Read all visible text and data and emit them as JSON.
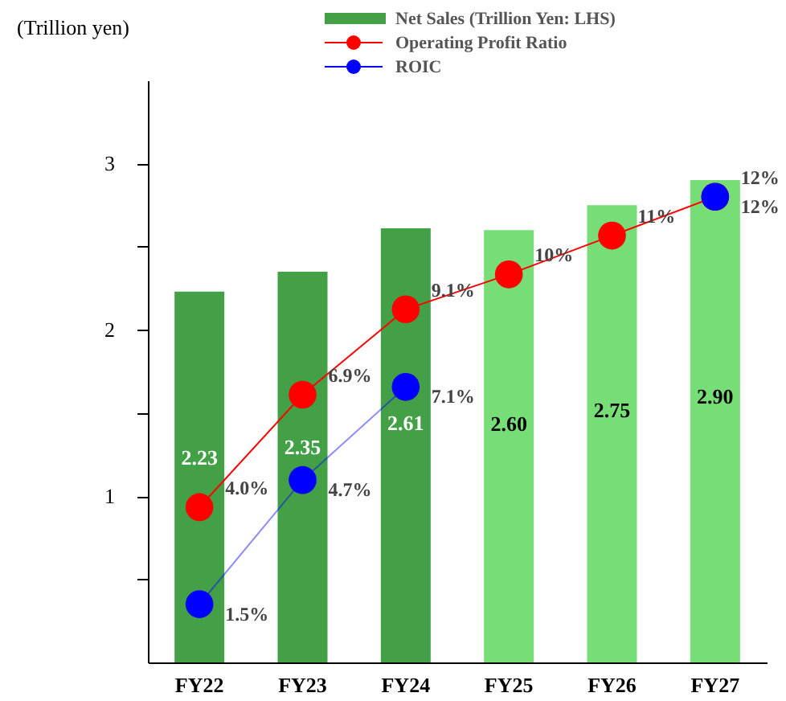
{
  "chart_data": {
    "type": "bar",
    "ylabel": "(Trillion yen)",
    "categories": [
      "FY22",
      "FY23",
      "FY24",
      "FY25",
      "FY26",
      "FY27"
    ],
    "ylim": [
      0,
      3.5
    ],
    "yticks": [
      {
        "value": 0.5,
        "label": null
      },
      1,
      {
        "value": 1.5,
        "label": null
      },
      2,
      {
        "value": 2.5,
        "label": null
      },
      3
    ],
    "y2lim": [
      0,
      15
    ],
    "data_labels": true,
    "legend": "top",
    "marker": "circle",
    "grid": false,
    "series": [
      {
        "name": "Net Sales (Trillion Yen: LHS)",
        "color": "#43a047",
        "colors": [
          "#43a047",
          "#43a047",
          "#43a047",
          "#77dd77",
          "#77dd77",
          "#77dd77"
        ],
        "values": [
          2.23,
          2.35,
          2.61,
          2.6,
          2.75,
          2.9
        ],
        "value_labels": [
          "2.23",
          "2.35",
          "2.61",
          "2.60",
          "2.75",
          "2.90"
        ]
      },
      {
        "name": "Operating Profit Ratio",
        "type": "line",
        "axis": "y2",
        "color": "#ff0000",
        "values": [
          4.0,
          6.9,
          9.1,
          10,
          11,
          12
        ],
        "value_labels": [
          "4.0%",
          "6.9%",
          "9.1%",
          "10%",
          "11%",
          "12%"
        ]
      },
      {
        "name": "ROIC",
        "type": "line",
        "axis": "y2",
        "color": "#0000ff",
        "values": [
          1.5,
          4.7,
          7.1,
          null,
          null,
          12
        ],
        "value_labels": [
          "1.5%",
          "4.7%",
          "7.1%",
          null,
          null,
          "12%"
        ]
      }
    ]
  }
}
